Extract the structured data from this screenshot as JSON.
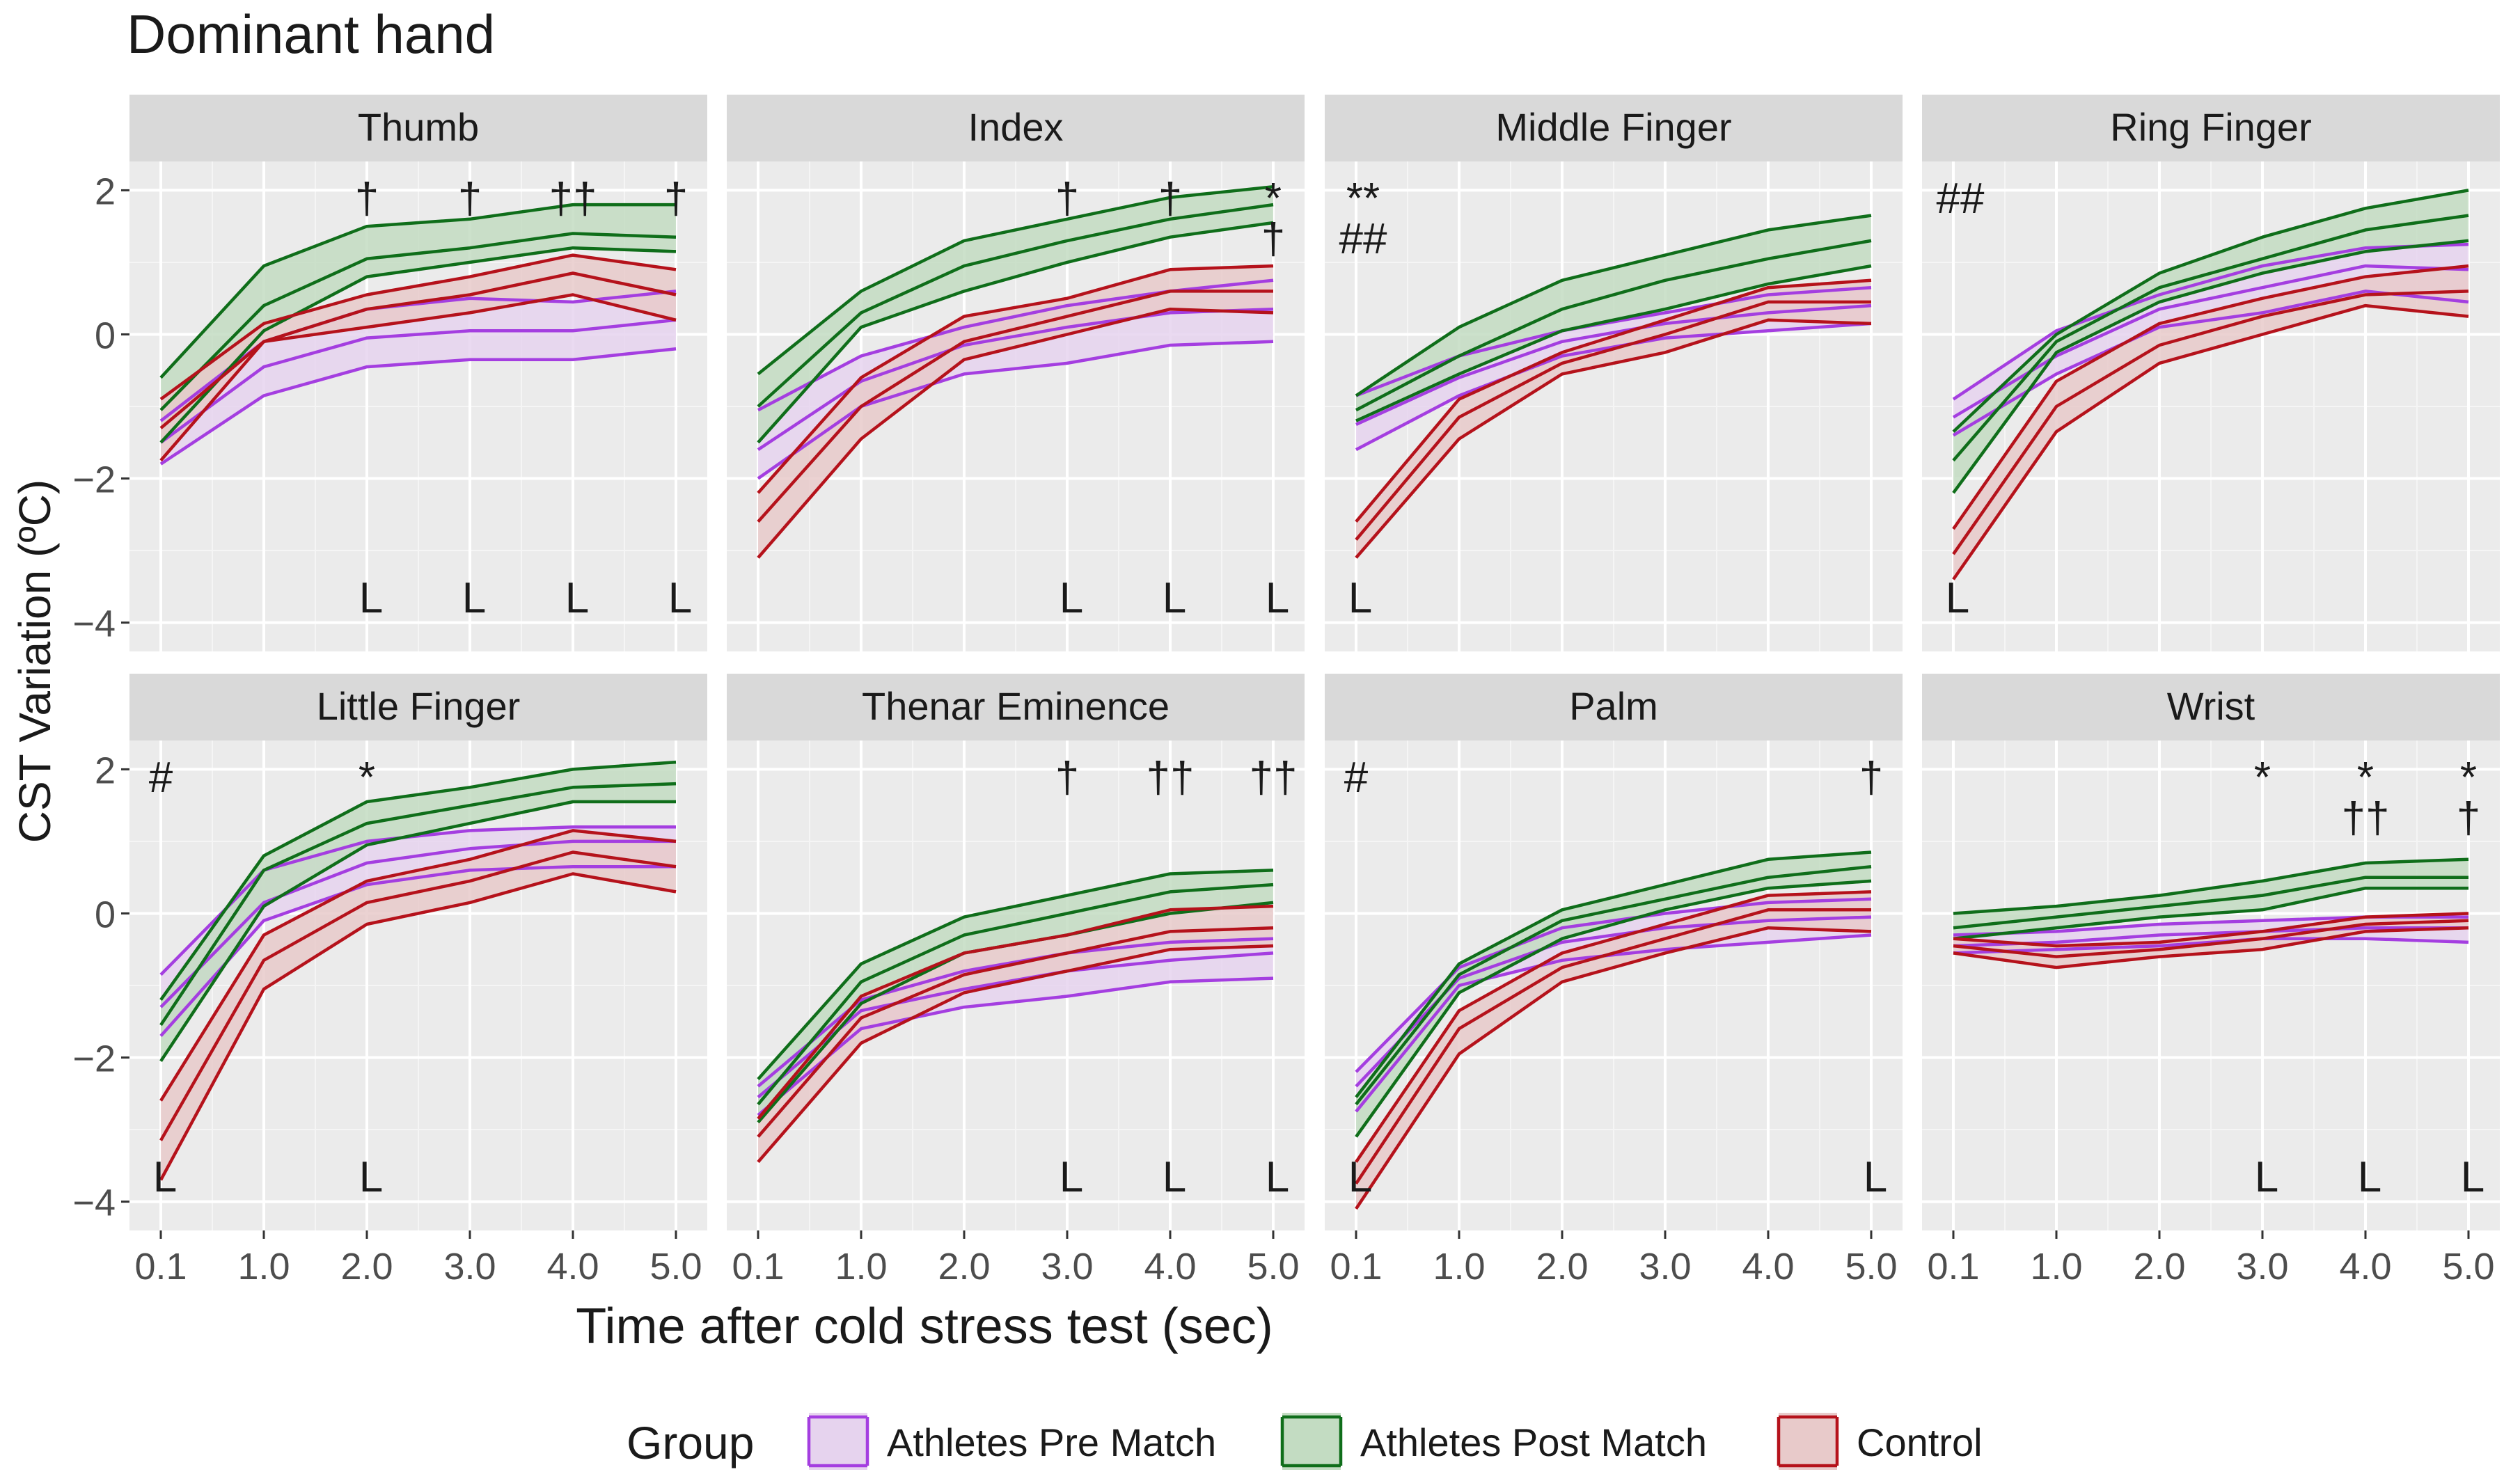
{
  "chart_data": {
    "type": "line",
    "title": "Dominant hand",
    "xlabel": "Time after cold stress test (sec)",
    "ylabel": "CST Variation (ºC)",
    "x": [
      0.1,
      1.0,
      2.0,
      3.0,
      4.0,
      5.0
    ],
    "x_tick_labels": [
      "0.1",
      "1.0",
      "2.0",
      "3.0",
      "4.0",
      "5.0"
    ],
    "ylim": [
      -4.4,
      2.4
    ],
    "y_ticks": [
      -4,
      -2,
      0,
      2
    ],
    "y_tick_labels": [
      "−4",
      "−2",
      "0",
      "2"
    ],
    "grid": true,
    "legend": {
      "title": "Group",
      "position": "bottom",
      "entries": [
        {
          "name": "Athletes Pre Match",
          "color": "#a43ee0",
          "fill": "#e6d3ee"
        },
        {
          "name": "Athletes Post Match",
          "color": "#0f6e1a",
          "fill": "#c3dcc2"
        },
        {
          "name": "Control",
          "color": "#b5121b",
          "fill": "#e8caca"
        }
      ]
    },
    "panels": [
      {
        "name": "Thumb",
        "series": [
          {
            "name": "Athletes Pre Match",
            "lower": [
              -1.8,
              -0.85,
              -0.45,
              -0.35,
              -0.35,
              -0.2
            ],
            "mean": [
              -1.5,
              -0.45,
              -0.05,
              0.05,
              0.05,
              0.2
            ],
            "upper": [
              -1.2,
              -0.1,
              0.35,
              0.5,
              0.45,
              0.6
            ]
          },
          {
            "name": "Athletes Post Match",
            "lower": [
              -1.5,
              0.05,
              0.8,
              1.0,
              1.2,
              1.15
            ],
            "mean": [
              -1.05,
              0.4,
              1.05,
              1.2,
              1.4,
              1.35
            ],
            "upper": [
              -0.6,
              0.95,
              1.5,
              1.6,
              1.8,
              1.8
            ]
          },
          {
            "name": "Control",
            "lower": [
              -1.75,
              -0.1,
              0.1,
              0.3,
              0.55,
              0.2
            ],
            "mean": [
              -1.3,
              -0.1,
              0.35,
              0.55,
              0.85,
              0.55
            ],
            "upper": [
              -0.9,
              0.15,
              0.55,
              0.8,
              1.1,
              0.9
            ]
          }
        ],
        "annotations": [
          {
            "text": "†",
            "x": 2.0,
            "row": "top"
          },
          {
            "text": "†",
            "x": 3.0,
            "row": "top"
          },
          {
            "text": "††",
            "x": 4.0,
            "row": "top"
          },
          {
            "text": "†",
            "x": 5.0,
            "row": "top"
          },
          {
            "text": "L",
            "x": 2.0,
            "row": "bottom"
          },
          {
            "text": "L",
            "x": 3.0,
            "row": "bottom"
          },
          {
            "text": "L",
            "x": 4.0,
            "row": "bottom"
          },
          {
            "text": "L",
            "x": 5.0,
            "row": "bottom"
          }
        ]
      },
      {
        "name": "Index",
        "series": [
          {
            "name": "Athletes Pre Match",
            "lower": [
              -2.0,
              -1.0,
              -0.55,
              -0.4,
              -0.15,
              -0.1
            ],
            "mean": [
              -1.6,
              -0.65,
              -0.15,
              0.1,
              0.3,
              0.35
            ],
            "upper": [
              -1.05,
              -0.3,
              0.1,
              0.4,
              0.6,
              0.75
            ]
          },
          {
            "name": "Athletes Post Match",
            "lower": [
              -1.5,
              0.1,
              0.6,
              1.0,
              1.35,
              1.55
            ],
            "mean": [
              -1.0,
              0.3,
              0.95,
              1.3,
              1.6,
              1.8
            ],
            "upper": [
              -0.55,
              0.6,
              1.3,
              1.6,
              1.9,
              2.05
            ]
          },
          {
            "name": "Control",
            "lower": [
              -3.1,
              -1.45,
              -0.35,
              0.0,
              0.35,
              0.3
            ],
            "mean": [
              -2.6,
              -1.0,
              -0.1,
              0.25,
              0.6,
              0.6
            ],
            "upper": [
              -2.2,
              -0.6,
              0.25,
              0.5,
              0.9,
              0.95
            ]
          }
        ],
        "annotations": [
          {
            "text": "†",
            "x": 3.0,
            "row": "top"
          },
          {
            "text": "†",
            "x": 4.0,
            "row": "top"
          },
          {
            "text": "*",
            "x": 5.0,
            "row": "top"
          },
          {
            "text": "†",
            "x": 5.0,
            "row": "top2"
          },
          {
            "text": "L",
            "x": 3.0,
            "row": "bottom"
          },
          {
            "text": "L",
            "x": 4.0,
            "row": "bottom"
          },
          {
            "text": "L",
            "x": 5.0,
            "row": "bottom"
          }
        ]
      },
      {
        "name": "Middle Finger",
        "series": [
          {
            "name": "Athletes Pre Match",
            "lower": [
              -1.6,
              -0.85,
              -0.3,
              -0.05,
              0.05,
              0.15
            ],
            "mean": [
              -1.25,
              -0.6,
              -0.1,
              0.15,
              0.3,
              0.4
            ],
            "upper": [
              -0.85,
              -0.3,
              0.05,
              0.3,
              0.55,
              0.65
            ]
          },
          {
            "name": "Athletes Post Match",
            "lower": [
              -1.2,
              -0.55,
              0.05,
              0.35,
              0.7,
              0.95
            ],
            "mean": [
              -1.05,
              -0.3,
              0.35,
              0.75,
              1.05,
              1.3
            ],
            "upper": [
              -0.85,
              0.1,
              0.75,
              1.1,
              1.45,
              1.65
            ]
          },
          {
            "name": "Control",
            "lower": [
              -3.1,
              -1.45,
              -0.55,
              -0.25,
              0.2,
              0.15
            ],
            "mean": [
              -2.85,
              -1.15,
              -0.4,
              0.0,
              0.45,
              0.45
            ],
            "upper": [
              -2.6,
              -0.9,
              -0.25,
              0.2,
              0.65,
              0.75
            ]
          }
        ],
        "annotations": [
          {
            "text": "**",
            "x": 0.1,
            "row": "top"
          },
          {
            "text": "##",
            "x": 0.1,
            "row": "top2"
          },
          {
            "text": "L",
            "x": 0.1,
            "row": "bottom"
          }
        ]
      },
      {
        "name": "Ring Finger",
        "series": [
          {
            "name": "Athletes Pre Match",
            "lower": [
              -1.4,
              -0.55,
              0.1,
              0.3,
              0.6,
              0.45
            ],
            "mean": [
              -1.15,
              -0.3,
              0.35,
              0.65,
              0.95,
              0.9
            ],
            "upper": [
              -0.9,
              0.05,
              0.55,
              0.95,
              1.2,
              1.25
            ]
          },
          {
            "name": "Athletes Post Match",
            "lower": [
              -2.2,
              -0.25,
              0.45,
              0.85,
              1.15,
              1.3
            ],
            "mean": [
              -1.75,
              -0.1,
              0.65,
              1.05,
              1.45,
              1.65
            ],
            "upper": [
              -1.35,
              0.0,
              0.85,
              1.35,
              1.75,
              2.0
            ]
          },
          {
            "name": "Control",
            "lower": [
              -3.4,
              -1.35,
              -0.4,
              0.0,
              0.4,
              0.25
            ],
            "mean": [
              -3.05,
              -1.0,
              -0.15,
              0.25,
              0.55,
              0.6
            ],
            "upper": [
              -2.7,
              -0.65,
              0.15,
              0.5,
              0.8,
              0.95
            ]
          }
        ],
        "annotations": [
          {
            "text": "##",
            "x": 0.1,
            "row": "top"
          },
          {
            "text": "L",
            "x": 0.1,
            "row": "bottom"
          }
        ]
      },
      {
        "name": "Little Finger",
        "series": [
          {
            "name": "Athletes Pre Match",
            "lower": [
              -1.7,
              -0.1,
              0.4,
              0.6,
              0.65,
              0.65
            ],
            "mean": [
              -1.3,
              0.15,
              0.7,
              0.9,
              1.0,
              1.0
            ],
            "upper": [
              -0.85,
              0.6,
              1.0,
              1.15,
              1.2,
              1.2
            ]
          },
          {
            "name": "Athletes Post Match",
            "lower": [
              -2.05,
              0.1,
              0.95,
              1.25,
              1.55,
              1.55
            ],
            "mean": [
              -1.55,
              0.6,
              1.25,
              1.5,
              1.75,
              1.8
            ],
            "upper": [
              -1.2,
              0.8,
              1.55,
              1.75,
              2.0,
              2.1
            ]
          },
          {
            "name": "Control",
            "lower": [
              -3.7,
              -1.05,
              -0.15,
              0.15,
              0.55,
              0.3
            ],
            "mean": [
              -3.15,
              -0.65,
              0.15,
              0.45,
              0.85,
              0.65
            ],
            "upper": [
              -2.6,
              -0.3,
              0.45,
              0.75,
              1.15,
              1.0
            ]
          }
        ],
        "annotations": [
          {
            "text": "#",
            "x": 0.1,
            "row": "top"
          },
          {
            "text": "*",
            "x": 2.0,
            "row": "top"
          },
          {
            "text": "L",
            "x": 0.1,
            "row": "bottom"
          },
          {
            "text": "L",
            "x": 2.0,
            "row": "bottom"
          }
        ]
      },
      {
        "name": "Thenar Eminence",
        "series": [
          {
            "name": "Athletes Pre Match",
            "lower": [
              -2.8,
              -1.6,
              -1.3,
              -1.15,
              -0.95,
              -0.9
            ],
            "mean": [
              -2.55,
              -1.35,
              -1.05,
              -0.8,
              -0.65,
              -0.55
            ],
            "upper": [
              -2.4,
              -1.2,
              -0.8,
              -0.55,
              -0.4,
              -0.35
            ]
          },
          {
            "name": "Athletes Post Match",
            "lower": [
              -2.9,
              -1.25,
              -0.55,
              -0.3,
              0.0,
              0.15
            ],
            "mean": [
              -2.65,
              -0.95,
              -0.3,
              0.0,
              0.3,
              0.4
            ],
            "upper": [
              -2.3,
              -0.7,
              -0.05,
              0.25,
              0.55,
              0.6
            ]
          },
          {
            "name": "Control",
            "lower": [
              -3.45,
              -1.8,
              -1.1,
              -0.8,
              -0.5,
              -0.45
            ],
            "mean": [
              -3.1,
              -1.45,
              -0.85,
              -0.55,
              -0.25,
              -0.2
            ],
            "upper": [
              -2.85,
              -1.15,
              -0.55,
              -0.3,
              0.05,
              0.1
            ]
          }
        ],
        "annotations": [
          {
            "text": "†",
            "x": 3.0,
            "row": "top"
          },
          {
            "text": "††",
            "x": 4.0,
            "row": "top"
          },
          {
            "text": "††",
            "x": 5.0,
            "row": "top"
          },
          {
            "text": "L",
            "x": 3.0,
            "row": "bottom"
          },
          {
            "text": "L",
            "x": 4.0,
            "row": "bottom"
          },
          {
            "text": "L",
            "x": 5.0,
            "row": "bottom"
          }
        ]
      },
      {
        "name": "Palm",
        "series": [
          {
            "name": "Athletes Pre Match",
            "lower": [
              -2.75,
              -1.0,
              -0.65,
              -0.5,
              -0.4,
              -0.3
            ],
            "mean": [
              -2.4,
              -0.9,
              -0.4,
              -0.2,
              -0.1,
              -0.05
            ],
            "upper": [
              -2.2,
              -0.75,
              -0.2,
              0.0,
              0.15,
              0.2
            ]
          },
          {
            "name": "Athletes Post Match",
            "lower": [
              -3.1,
              -1.1,
              -0.35,
              0.05,
              0.35,
              0.45
            ],
            "mean": [
              -2.65,
              -0.85,
              -0.1,
              0.2,
              0.5,
              0.65
            ],
            "upper": [
              -2.55,
              -0.7,
              0.05,
              0.4,
              0.75,
              0.85
            ]
          },
          {
            "name": "Control",
            "lower": [
              -4.1,
              -1.95,
              -0.95,
              -0.55,
              -0.2,
              -0.25
            ],
            "mean": [
              -3.75,
              -1.6,
              -0.75,
              -0.35,
              0.05,
              0.05
            ],
            "upper": [
              -3.45,
              -1.35,
              -0.55,
              -0.15,
              0.25,
              0.3
            ]
          }
        ],
        "annotations": [
          {
            "text": "#",
            "x": 0.1,
            "row": "top"
          },
          {
            "text": "†",
            "x": 5.0,
            "row": "top"
          },
          {
            "text": "L",
            "x": 0.1,
            "row": "bottom"
          },
          {
            "text": "L",
            "x": 5.0,
            "row": "bottom"
          }
        ]
      },
      {
        "name": "Wrist",
        "series": [
          {
            "name": "Athletes Pre Match",
            "lower": [
              -0.55,
              -0.5,
              -0.45,
              -0.35,
              -0.35,
              -0.4
            ],
            "mean": [
              -0.45,
              -0.4,
              -0.3,
              -0.25,
              -0.2,
              -0.2
            ],
            "upper": [
              -0.3,
              -0.25,
              -0.15,
              -0.1,
              -0.05,
              -0.05
            ]
          },
          {
            "name": "Athletes Post Match",
            "lower": [
              -0.35,
              -0.2,
              -0.05,
              0.05,
              0.35,
              0.35
            ],
            "mean": [
              -0.2,
              -0.05,
              0.1,
              0.25,
              0.5,
              0.5
            ],
            "upper": [
              0.0,
              0.1,
              0.25,
              0.45,
              0.7,
              0.75
            ]
          },
          {
            "name": "Control",
            "lower": [
              -0.55,
              -0.75,
              -0.6,
              -0.5,
              -0.25,
              -0.2
            ],
            "mean": [
              -0.45,
              -0.6,
              -0.5,
              -0.35,
              -0.15,
              -0.1
            ],
            "upper": [
              -0.35,
              -0.45,
              -0.4,
              -0.25,
              -0.05,
              0.0
            ]
          }
        ],
        "annotations": [
          {
            "text": "*",
            "x": 3.0,
            "row": "top"
          },
          {
            "text": "*",
            "x": 4.0,
            "row": "top"
          },
          {
            "text": "*",
            "x": 5.0,
            "row": "top"
          },
          {
            "text": "††",
            "x": 4.0,
            "row": "top2"
          },
          {
            "text": "†",
            "x": 5.0,
            "row": "top2"
          },
          {
            "text": "L",
            "x": 3.0,
            "row": "bottom"
          },
          {
            "text": "L",
            "x": 4.0,
            "row": "bottom"
          },
          {
            "text": "L",
            "x": 5.0,
            "row": "bottom"
          }
        ]
      }
    ]
  }
}
